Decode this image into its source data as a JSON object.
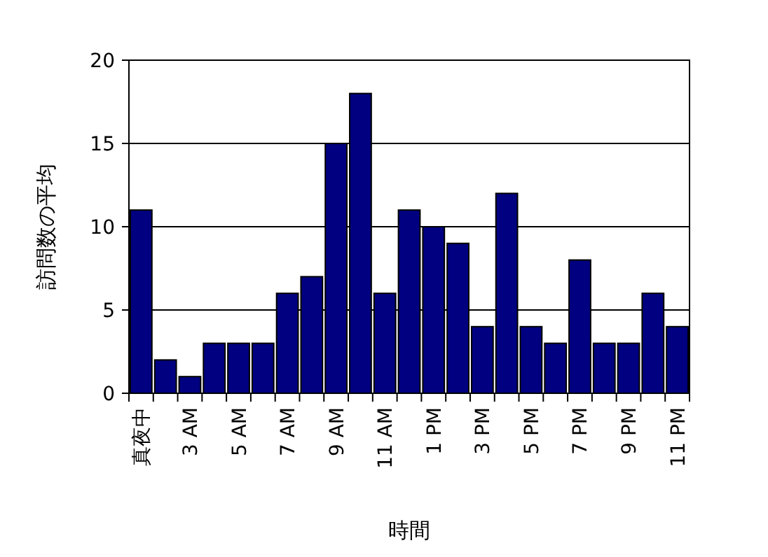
{
  "chart_data": {
    "type": "bar",
    "xlabel": "時間",
    "ylabel": "訪問数の平均",
    "categories": [
      "真夜中",
      null,
      "3 AM",
      null,
      "5 AM",
      null,
      "7 AM",
      null,
      "9 AM",
      null,
      "11 AM",
      null,
      "1 PM",
      null,
      "3 PM",
      null,
      "5 PM",
      null,
      "7 PM",
      null,
      "9 PM",
      null,
      "11 PM"
    ],
    "values": [
      11,
      2,
      1,
      3,
      3,
      3,
      6,
      7,
      15,
      18,
      6,
      11,
      10,
      9,
      4,
      12,
      4,
      3,
      8,
      3,
      3,
      6,
      4
    ],
    "color": "#000080",
    "ylim": [
      0,
      20
    ],
    "yticks": [
      0,
      5,
      10,
      15,
      20
    ],
    "grid": "y"
  }
}
